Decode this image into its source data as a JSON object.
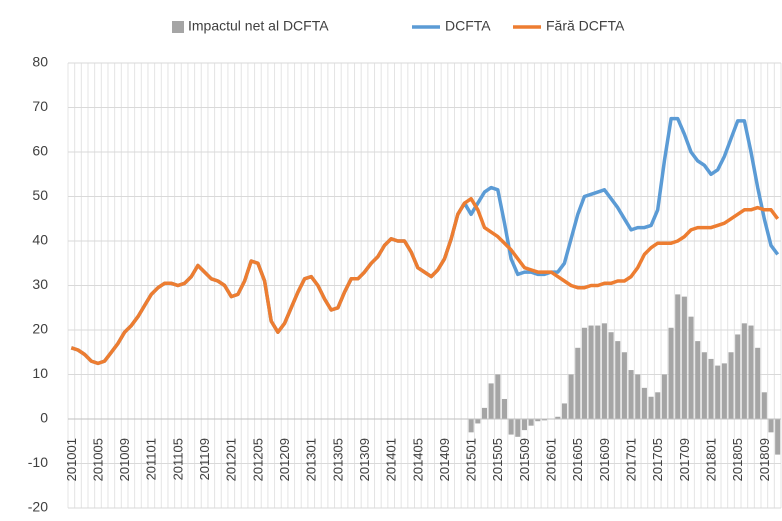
{
  "chart_data": {
    "type": "combo",
    "categories": [
      "201001",
      null,
      null,
      null,
      "201005",
      null,
      null,
      null,
      "201009",
      null,
      null,
      null,
      "201101",
      null,
      null,
      null,
      "201105",
      null,
      null,
      null,
      "201109",
      null,
      null,
      null,
      "201201",
      null,
      null,
      null,
      "201205",
      null,
      null,
      null,
      "201209",
      null,
      null,
      null,
      "201301",
      null,
      null,
      null,
      "201305",
      null,
      null,
      null,
      "201309",
      null,
      null,
      null,
      "201401",
      null,
      null,
      null,
      "201405",
      null,
      null,
      null,
      "201409",
      null,
      null,
      null,
      "201501",
      null,
      null,
      null,
      "201505",
      null,
      null,
      null,
      "201509",
      null,
      null,
      null,
      "201601",
      null,
      null,
      null,
      "201605",
      null,
      null,
      null,
      "201609",
      null,
      null,
      null,
      "201701",
      null,
      null,
      null,
      "201705",
      null,
      null,
      null,
      "201709",
      null,
      null,
      null,
      "201801",
      null,
      null,
      null,
      "201805",
      null,
      null,
      null,
      "201809",
      null,
      null
    ],
    "series": [
      {
        "name": "Impactul net al DCFTA",
        "kind": "bar",
        "color": "#a5a5a5",
        "values": [
          null,
          null,
          null,
          null,
          null,
          null,
          null,
          null,
          null,
          null,
          null,
          null,
          null,
          null,
          null,
          null,
          null,
          null,
          null,
          null,
          null,
          null,
          null,
          null,
          null,
          null,
          null,
          null,
          null,
          null,
          null,
          null,
          null,
          null,
          null,
          null,
          null,
          null,
          null,
          null,
          null,
          null,
          null,
          null,
          null,
          null,
          null,
          null,
          null,
          null,
          null,
          null,
          null,
          null,
          null,
          null,
          null,
          null,
          null,
          null,
          -3,
          -1,
          2.5,
          8,
          10,
          4.5,
          -3.5,
          -4,
          -2.5,
          -1.5,
          -0.5,
          -0.3,
          0,
          0.5,
          3.5,
          10,
          16,
          20.5,
          21,
          21,
          21.5,
          19.5,
          17.5,
          15,
          11,
          10,
          7,
          5,
          6,
          10,
          20.5,
          28,
          27.5,
          23,
          17.5,
          15,
          13.5,
          12,
          12.5,
          15,
          19,
          21.5,
          21,
          16,
          6,
          -3,
          -8
        ]
      },
      {
        "name": "DCFTA",
        "kind": "line",
        "color": "#5b9bd5",
        "values": [
          16,
          15.5,
          14.5,
          13,
          12.5,
          13,
          15,
          17,
          19.5,
          21,
          23,
          25.5,
          28,
          29.5,
          30.5,
          30.5,
          30,
          30.5,
          32,
          34.5,
          33,
          31.5,
          31,
          30,
          27.5,
          28,
          31,
          35.5,
          35,
          31,
          22,
          19.5,
          21.5,
          25,
          28.5,
          31.5,
          32,
          30,
          27,
          24.5,
          25,
          28.5,
          31.5,
          31.5,
          33,
          35,
          36.5,
          39,
          40.5,
          40,
          40,
          37.5,
          34,
          33,
          32,
          33.5,
          36,
          40.5,
          46,
          48.5,
          46,
          48.5,
          51,
          52,
          51.5,
          44,
          36,
          32.5,
          33,
          33,
          32.5,
          32.5,
          33,
          33,
          35,
          40.5,
          46,
          50,
          50.5,
          51,
          51.5,
          49.5,
          47.5,
          45,
          42.5,
          43,
          43,
          43.5,
          47,
          58,
          67.5,
          67.5,
          64,
          60,
          58,
          57,
          55,
          56,
          59,
          63,
          67,
          67,
          60,
          52,
          45,
          39,
          37
        ]
      },
      {
        "name": "Fără DCFTA",
        "kind": "line",
        "color": "#ed7d31",
        "values": [
          16,
          15.5,
          14.5,
          13,
          12.5,
          13,
          15,
          17,
          19.5,
          21,
          23,
          25.5,
          28,
          29.5,
          30.5,
          30.5,
          30,
          30.5,
          32,
          34.5,
          33,
          31.5,
          31,
          30,
          27.5,
          28,
          31,
          35.5,
          35,
          31,
          22,
          19.5,
          21.5,
          25,
          28.5,
          31.5,
          32,
          30,
          27,
          24.5,
          25,
          28.5,
          31.5,
          31.5,
          33,
          35,
          36.5,
          39,
          40.5,
          40,
          40,
          37.5,
          34,
          33,
          32,
          33.5,
          36,
          40.5,
          46,
          48.5,
          49.5,
          47,
          43,
          42,
          41,
          39.5,
          38,
          36,
          34,
          33.5,
          33,
          33,
          33,
          32,
          31,
          30,
          29.5,
          29.5,
          30,
          30,
          30.5,
          30.5,
          31,
          31,
          32,
          34,
          37,
          38.5,
          39.5,
          39.5,
          39.5,
          40,
          41,
          42.5,
          43,
          43,
          43,
          43.5,
          44,
          45,
          46,
          47,
          47,
          47.5,
          47,
          47,
          45
        ]
      }
    ],
    "ylim": [
      -20,
      80
    ],
    "yticks": [
      -20,
      -10,
      0,
      10,
      20,
      30,
      40,
      50,
      60,
      70,
      80
    ],
    "grid": true,
    "legend": "top"
  }
}
